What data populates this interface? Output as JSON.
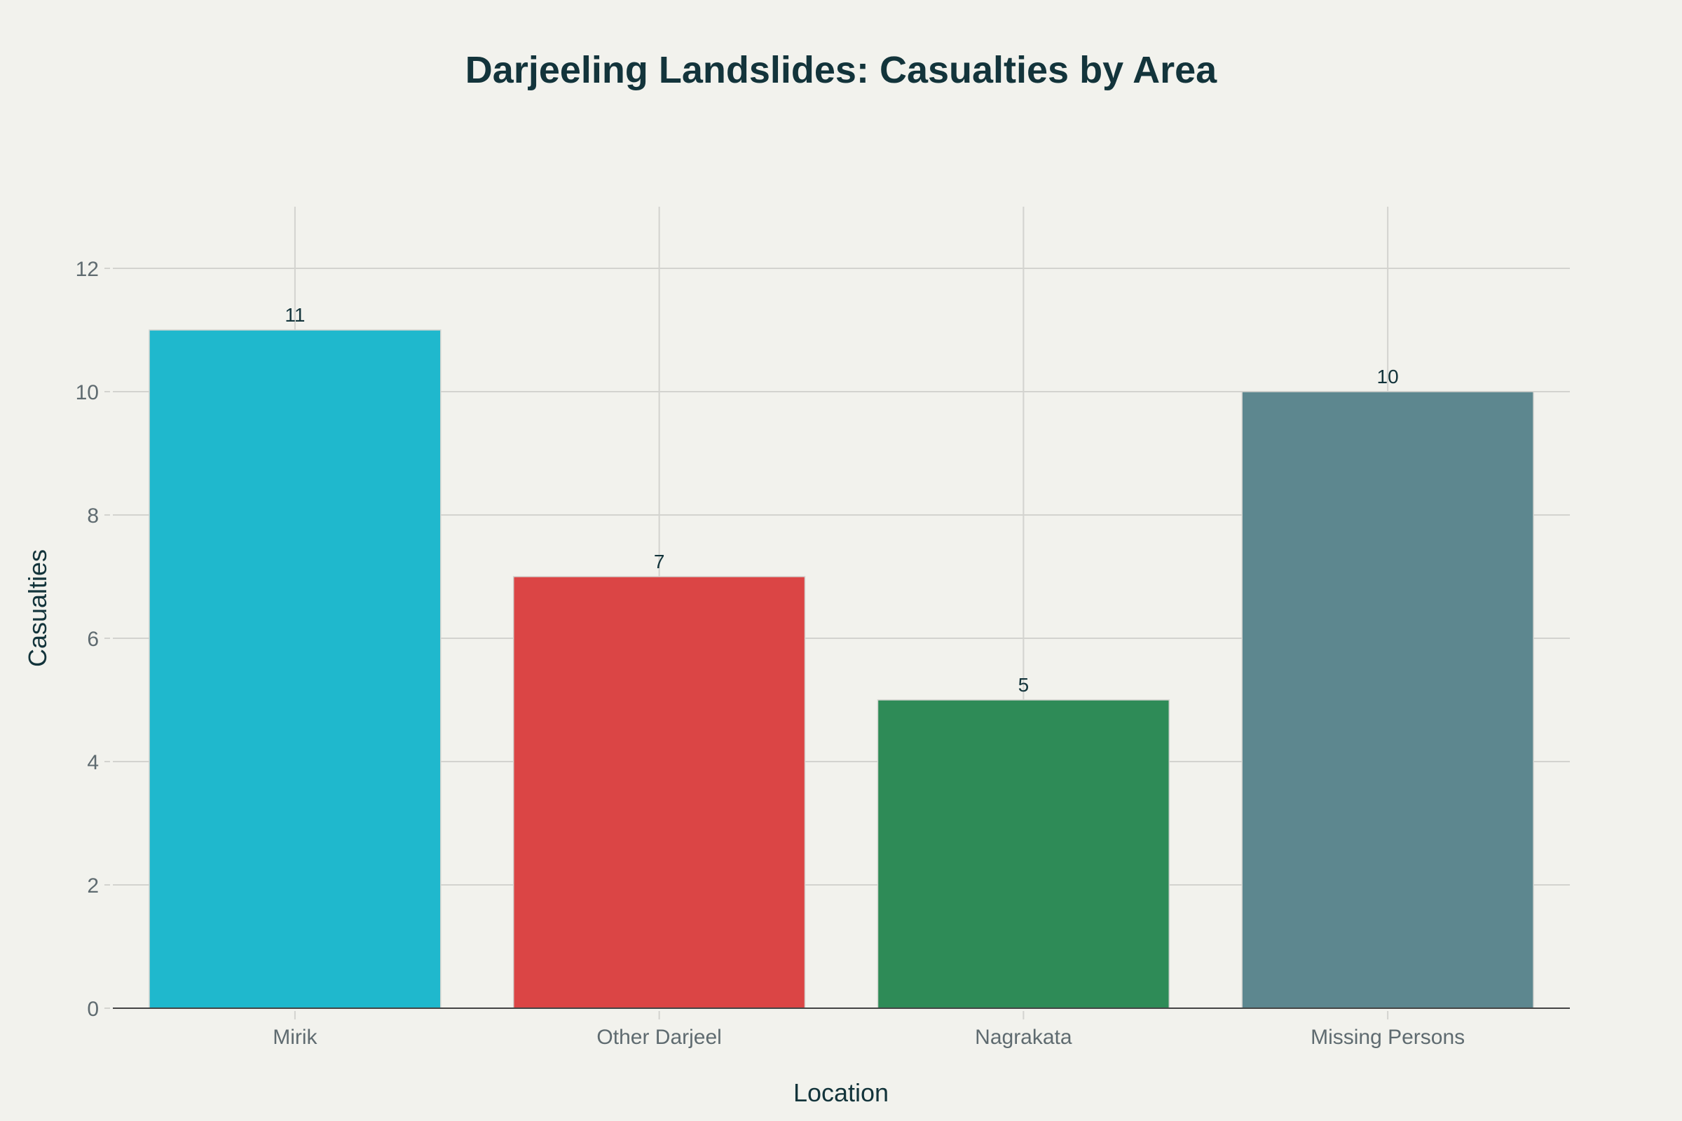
{
  "chart_data": {
    "type": "bar",
    "title": "Darjeeling Landslides: Casualties by Area",
    "xlabel": "Location",
    "ylabel": "Casualties",
    "categories": [
      "Mirik",
      "Other Darjeel",
      "Nagrakata",
      "Missing Persons"
    ],
    "values": [
      11,
      7,
      5,
      10
    ],
    "data_labels": [
      "11",
      "7",
      "5",
      "10"
    ],
    "colors": [
      "#1fb8cd",
      "#db4545",
      "#2e8b57",
      "#5d878f"
    ],
    "ylim": [
      0,
      13
    ],
    "yticks": [
      0,
      2,
      4,
      6,
      8,
      10,
      12
    ],
    "grid": true,
    "legend": "none"
  }
}
